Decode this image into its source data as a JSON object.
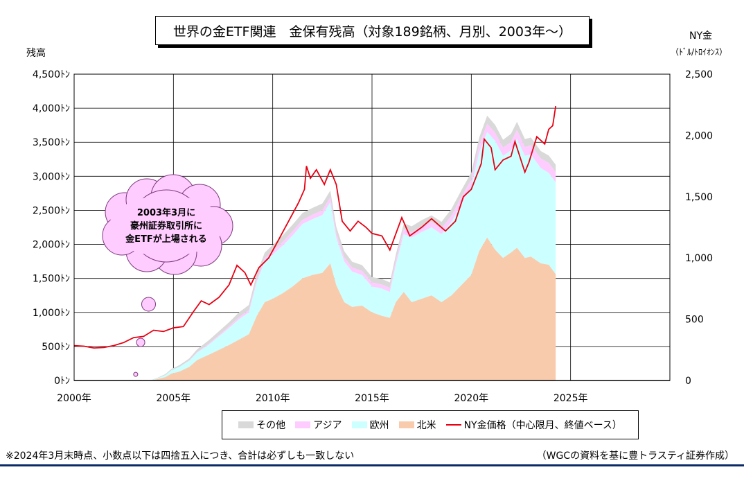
{
  "header": {
    "title": "世界の金ETF関連　金保有残高（対象189銘柄、月別、2003年～）",
    "left_axis_title": "残高",
    "right_axis_title": "NY金",
    "right_axis_unit": "（ﾄﾞﾙ/ﾄﾛｲｵﾝｽ）"
  },
  "callout": {
    "line1": "2003年3月に",
    "line2": "豪州証券取引所に",
    "line3": "金ETFが上場される"
  },
  "legend": {
    "items": [
      {
        "label": "その他",
        "color": "#d9d9d9",
        "kind": "area"
      },
      {
        "label": "アジア",
        "color": "#ffccff",
        "kind": "area"
      },
      {
        "label": "欧州",
        "color": "#ccffff",
        "kind": "area"
      },
      {
        "label": "北米",
        "color": "#f8cbad",
        "kind": "area"
      },
      {
        "label": "NY金価格（中心限月、終値ベース）",
        "color": "#e60012",
        "kind": "line"
      }
    ]
  },
  "footer": {
    "note": "※2024年3月末時点、小数点以下は四捨五入につき、合計は必ずしも一致しない",
    "source": "（WGCの資料を基に豊トラスティ証券作成）"
  },
  "chart_data": {
    "type": "area",
    "x_axis": {
      "min": 2000,
      "max": 2030,
      "ticks": [
        2000,
        2005,
        2010,
        2015,
        2020,
        2025
      ],
      "tick_labels": [
        "2000年",
        "2005年",
        "2010年",
        "2015年",
        "2020年",
        "2025年"
      ]
    },
    "y_left": {
      "min": 0,
      "max": 4500,
      "ticks": [
        0,
        500,
        1000,
        1500,
        2000,
        2500,
        3000,
        3500,
        4000,
        4500
      ],
      "tick_labels": [
        "0ﾄﾝ",
        "500ﾄﾝ",
        "1,000ﾄﾝ",
        "1,500ﾄﾝ",
        "2,000ﾄﾝ",
        "2,500ﾄﾝ",
        "3,000ﾄﾝ",
        "3,500ﾄﾝ",
        "4,000ﾄﾝ",
        "4,500ﾄﾝ"
      ]
    },
    "y_right": {
      "min": 0,
      "max": 2500,
      "ticks": [
        0,
        500,
        1000,
        1500,
        2000,
        2500
      ],
      "tick_labels": [
        "0",
        "500",
        "1,000",
        "1,500",
        "2,000",
        "2,500"
      ]
    },
    "grid": {
      "horizontal": true,
      "vertical": true
    },
    "stack_order": [
      "北米",
      "欧州",
      "アジア",
      "その他"
    ],
    "holdings_tonnes": {
      "x": [
        2003.2,
        2003.8,
        2004.2,
        2004.6,
        2004.9,
        2005.3,
        2005.8,
        2006.2,
        2006.8,
        2007.3,
        2007.8,
        2008.3,
        2008.8,
        2009.2,
        2009.6,
        2010.0,
        2010.5,
        2011.0,
        2011.5,
        2012.0,
        2012.5,
        2012.9,
        2013.2,
        2013.6,
        2014.0,
        2014.5,
        2015.0,
        2015.5,
        2015.9,
        2016.2,
        2016.6,
        2017.0,
        2017.5,
        2018.0,
        2018.5,
        2019.0,
        2019.5,
        2020.0,
        2020.4,
        2020.8,
        2021.2,
        2021.6,
        2022.0,
        2022.3,
        2022.7,
        2023.0,
        2023.5,
        2023.9,
        2024.25
      ],
      "北米": [
        0,
        0,
        20,
        50,
        100,
        130,
        200,
        300,
        380,
        450,
        520,
        600,
        680,
        950,
        1150,
        1200,
        1280,
        1380,
        1500,
        1550,
        1580,
        1720,
        1400,
        1150,
        1080,
        1100,
        1000,
        950,
        920,
        1150,
        1300,
        1150,
        1200,
        1250,
        1150,
        1250,
        1400,
        1550,
        1900,
        2100,
        1920,
        1800,
        1880,
        1950,
        1800,
        1820,
        1720,
        1700,
        1560
      ],
      "欧州": [
        0,
        0,
        10,
        30,
        50,
        70,
        90,
        110,
        150,
        200,
        250,
        300,
        320,
        500,
        600,
        650,
        700,
        750,
        800,
        820,
        850,
        900,
        700,
        600,
        520,
        450,
        380,
        400,
        380,
        550,
        850,
        950,
        980,
        1000,
        1000,
        1080,
        1200,
        1300,
        1450,
        1550,
        1600,
        1500,
        1500,
        1600,
        1500,
        1500,
        1400,
        1350,
        1350
      ],
      "アジア": [
        0,
        0,
        0,
        0,
        0,
        0,
        5,
        10,
        15,
        20,
        25,
        30,
        35,
        40,
        45,
        50,
        55,
        60,
        60,
        65,
        70,
        70,
        65,
        60,
        60,
        60,
        60,
        60,
        60,
        65,
        70,
        75,
        80,
        80,
        85,
        90,
        95,
        100,
        110,
        120,
        120,
        120,
        125,
        130,
        130,
        135,
        140,
        145,
        150
      ],
      "その他": [
        0,
        0,
        10,
        15,
        20,
        25,
        30,
        40,
        50,
        55,
        60,
        70,
        75,
        80,
        85,
        90,
        95,
        100,
        100,
        100,
        100,
        100,
        95,
        90,
        85,
        85,
        80,
        80,
        80,
        85,
        90,
        90,
        95,
        95,
        95,
        100,
        100,
        105,
        110,
        120,
        115,
        115,
        120,
        120,
        115,
        115,
        110,
        110,
        110
      ]
    },
    "ny_gold_usd": {
      "x": [
        2000.0,
        2000.5,
        2001.0,
        2001.5,
        2002.0,
        2002.5,
        2003.0,
        2003.5,
        2004.0,
        2004.5,
        2005.0,
        2005.5,
        2006.0,
        2006.4,
        2006.8,
        2007.3,
        2007.8,
        2008.2,
        2008.6,
        2008.9,
        2009.3,
        2009.8,
        2010.3,
        2010.8,
        2011.3,
        2011.6,
        2011.7,
        2011.9,
        2012.2,
        2012.6,
        2012.9,
        2013.2,
        2013.5,
        2013.9,
        2014.3,
        2014.7,
        2015.0,
        2015.5,
        2015.9,
        2016.5,
        2016.9,
        2017.5,
        2018.0,
        2018.7,
        2019.2,
        2019.6,
        2020.0,
        2020.5,
        2020.65,
        2021.0,
        2021.2,
        2021.6,
        2022.0,
        2022.2,
        2022.7,
        2022.9,
        2023.3,
        2023.7,
        2023.9,
        2024.1,
        2024.25
      ],
      "y": [
        285,
        280,
        265,
        270,
        285,
        310,
        350,
        360,
        410,
        400,
        430,
        440,
        560,
        650,
        620,
        680,
        780,
        940,
        880,
        780,
        920,
        1000,
        1150,
        1300,
        1450,
        1560,
        1750,
        1650,
        1720,
        1600,
        1720,
        1600,
        1300,
        1220,
        1300,
        1250,
        1200,
        1180,
        1065,
        1330,
        1180,
        1250,
        1320,
        1220,
        1300,
        1500,
        1560,
        1770,
        1970,
        1900,
        1720,
        1800,
        1830,
        1950,
        1700,
        1780,
        1990,
        1930,
        2050,
        2080,
        2240
      ]
    },
    "annotation_circles": [
      {
        "x": 2003.1,
        "y_left": 90
      },
      {
        "x": 2003.35,
        "y_left": 560
      },
      {
        "x": 2003.75,
        "y_left": 1120
      }
    ]
  }
}
